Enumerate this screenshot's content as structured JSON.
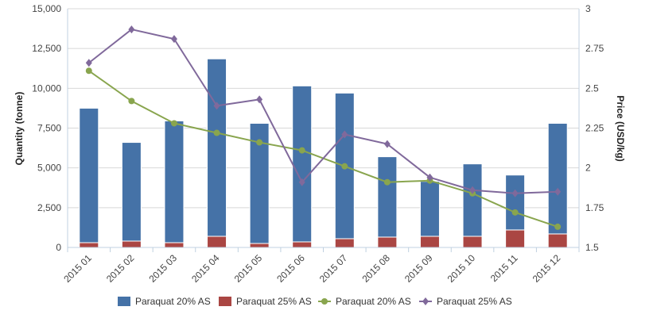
{
  "chart_data": {
    "type": "bar",
    "categories": [
      "2015 01",
      "2015 02",
      "2015 03",
      "2015 04",
      "2015 05",
      "2015 06",
      "2015 07",
      "2015 08",
      "2015 09",
      "2015 10",
      "2015 11",
      "2015 12"
    ],
    "series": [
      {
        "name": "Paraquat 20% AS",
        "kind": "stacked-bar",
        "axis": "left",
        "color": "#4572a7",
        "values": [
          8450,
          6200,
          7650,
          11150,
          7550,
          9800,
          9150,
          5050,
          3450,
          4550,
          3450,
          6950
        ]
      },
      {
        "name": "Paraquat 25% AS",
        "kind": "stacked-bar",
        "axis": "left",
        "color": "#aa4643",
        "values": [
          300,
          400,
          300,
          700,
          250,
          350,
          550,
          650,
          700,
          700,
          1100,
          850
        ]
      },
      {
        "name": "Paraquat 20% AS",
        "kind": "line",
        "axis": "right",
        "color": "#89a54e",
        "values": [
          2.61,
          2.42,
          2.28,
          2.22,
          2.16,
          2.11,
          2.01,
          1.91,
          1.92,
          1.84,
          1.72,
          1.63
        ]
      },
      {
        "name": "Paraquat 25% AS",
        "kind": "line",
        "axis": "right",
        "color": "#80699b",
        "values": [
          2.66,
          2.87,
          2.81,
          2.39,
          2.43,
          1.91,
          2.21,
          2.15,
          1.94,
          1.86,
          1.84,
          1.85
        ]
      }
    ],
    "ylabel_left": "Quantity (tonne)",
    "ylabel_right": "Price (USD/kg)",
    "y_left": {
      "min": 0,
      "max": 15000,
      "ticks": [
        "0",
        "2,500",
        "5,000",
        "7,500",
        "10,000",
        "12,500",
        "15,000"
      ]
    },
    "y_right": {
      "min": 1.5,
      "max": 3,
      "ticks": [
        "1.5",
        "1.75",
        "2",
        "2.25",
        "2.5",
        "2.75",
        "3"
      ]
    },
    "grid": true,
    "legend_position": "bottom"
  }
}
